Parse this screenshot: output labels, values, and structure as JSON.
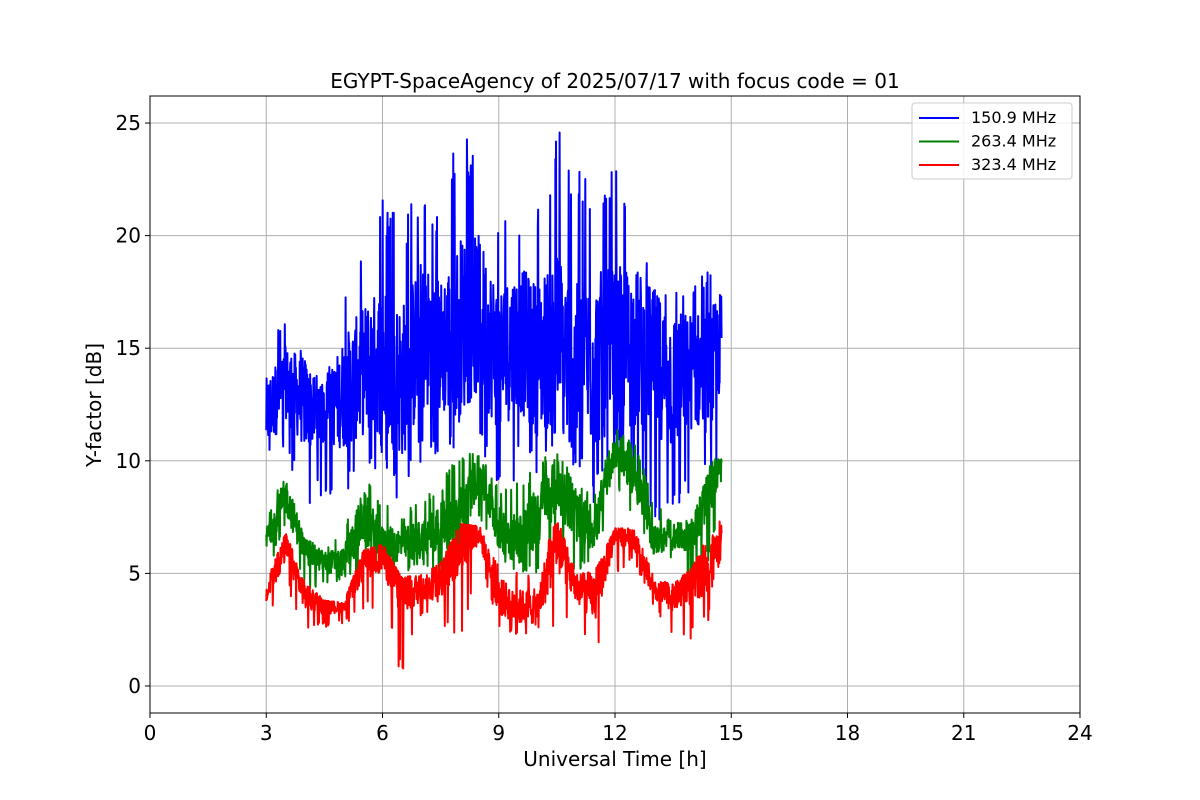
{
  "chart_data": {
    "type": "line",
    "title": "EGYPT-SpaceAgency of 2025/07/17 with focus code = 01",
    "xlabel": "Universal Time [h]",
    "ylabel": "Y-factor [dB]",
    "xlim": [
      0,
      24
    ],
    "ylim": [
      -1.2,
      26.2
    ],
    "xticks": [
      0,
      3,
      6,
      9,
      12,
      15,
      18,
      21,
      24
    ],
    "yticks": [
      0,
      5,
      10,
      15,
      20,
      25
    ],
    "grid": true,
    "legend_position": "top-right",
    "series": [
      {
        "name": "150.9 MHz",
        "color": "#0000ff",
        "x": [
          3.0,
          3.5,
          4.0,
          4.5,
          5.0,
          5.5,
          6.0,
          6.5,
          7.0,
          7.5,
          8.0,
          8.5,
          9.0,
          9.5,
          10.0,
          10.5,
          11.0,
          11.5,
          12.0,
          12.5,
          13.0,
          13.5,
          14.0,
          14.5,
          14.75
        ],
        "mid": [
          12.0,
          13.5,
          12.5,
          12.0,
          13.0,
          14.0,
          14.5,
          13.5,
          15.5,
          15.0,
          16.0,
          16.5,
          14.5,
          15.5,
          14.5,
          15.5,
          14.0,
          14.5,
          15.0,
          15.0,
          14.5,
          13.5,
          14.0,
          14.0,
          15.5
        ],
        "min": [
          10.2,
          10.5,
          7.5,
          8.5,
          8.5,
          9.0,
          9.8,
          7.8,
          10.0,
          10.3,
          10.5,
          10.5,
          8.5,
          9.3,
          9.5,
          10.8,
          9.5,
          7.8,
          10.0,
          9.3,
          6.5,
          7.0,
          8.8,
          8.5,
          10.0
        ],
        "max": [
          16.2,
          16.3,
          14.8,
          13.2,
          17.5,
          19.5,
          22.0,
          20.5,
          22.5,
          21.5,
          25.0,
          23.3,
          20.5,
          21.0,
          22.0,
          25.0,
          23.5,
          22.0,
          23.0,
          22.7,
          18.0,
          18.5,
          18.2,
          18.8,
          17.7
        ]
      },
      {
        "name": "263.4 MHz",
        "color": "#008000",
        "x": [
          3.0,
          3.5,
          4.0,
          4.5,
          5.0,
          5.5,
          6.0,
          6.5,
          7.0,
          7.5,
          8.0,
          8.5,
          9.0,
          9.5,
          10.0,
          10.5,
          11.0,
          11.5,
          12.0,
          12.5,
          13.0,
          13.5,
          14.0,
          14.5,
          14.75
        ],
        "mid": [
          6.5,
          8.5,
          6.0,
          5.5,
          5.5,
          7.5,
          6.2,
          6.3,
          6.5,
          7.0,
          7.5,
          9.5,
          7.0,
          6.5,
          7.5,
          9.0,
          7.5,
          7.0,
          10.5,
          9.5,
          6.5,
          6.5,
          6.8,
          9.0,
          9.8
        ],
        "min": [
          5.0,
          7.0,
          4.2,
          4.5,
          4.7,
          5.0,
          5.0,
          4.8,
          5.2,
          5.0,
          5.5,
          7.5,
          5.5,
          4.8,
          5.0,
          6.0,
          5.0,
          5.0,
          9.0,
          7.0,
          5.8,
          5.5,
          4.2,
          5.8,
          9.3
        ],
        "max": [
          7.2,
          10.0,
          6.5,
          6.2,
          7.0,
          9.5,
          8.2,
          7.5,
          8.5,
          9.0,
          10.5,
          10.3,
          9.0,
          9.0,
          10.0,
          10.5,
          9.0,
          8.5,
          11.5,
          11.0,
          8.3,
          7.2,
          7.4,
          10.0,
          10.3
        ]
      },
      {
        "name": "323.4 MHz",
        "color": "#ff0000",
        "x": [
          3.0,
          3.5,
          4.0,
          4.5,
          5.0,
          5.5,
          6.0,
          6.5,
          7.0,
          7.5,
          8.0,
          8.5,
          9.0,
          9.5,
          10.0,
          10.5,
          11.0,
          11.5,
          12.0,
          12.5,
          13.0,
          13.5,
          14.0,
          14.5,
          14.75
        ],
        "mid": [
          4.0,
          6.2,
          4.0,
          3.5,
          3.5,
          5.5,
          5.8,
          4.2,
          4.3,
          4.5,
          6.5,
          6.8,
          4.0,
          3.5,
          3.5,
          6.5,
          4.3,
          4.0,
          6.8,
          6.5,
          4.2,
          4.0,
          4.5,
          5.5,
          6.8
        ],
        "min": [
          3.0,
          4.5,
          2.5,
          2.6,
          2.8,
          3.0,
          3.8,
          0.0,
          3.2,
          2.7,
          1.7,
          5.5,
          2.5,
          2.2,
          2.3,
          2.4,
          2.5,
          1.1,
          5.0,
          5.5,
          3.5,
          2.0,
          2.1,
          3.0,
          6.0
        ],
        "max": [
          4.6,
          6.9,
          4.7,
          3.8,
          3.7,
          6.0,
          6.3,
          4.8,
          5.0,
          5.5,
          7.2,
          7.1,
          5.5,
          5.0,
          5.2,
          7.5,
          5.0,
          5.2,
          7.0,
          7.0,
          5.0,
          4.5,
          5.3,
          7.2,
          7.4
        ]
      }
    ]
  }
}
